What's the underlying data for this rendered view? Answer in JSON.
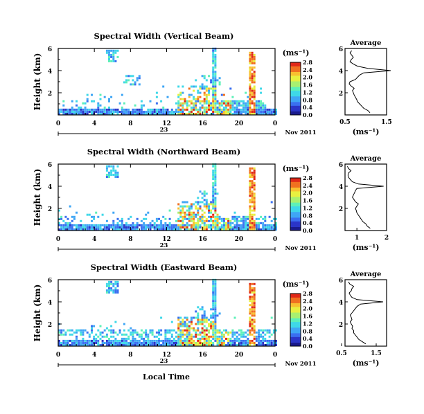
{
  "panels": [
    {
      "title": "Spectral Width (Vertical Beam)",
      "ylabel": "Height (km)",
      "ymax": 6,
      "yticks": [
        "2",
        "4",
        "6"
      ],
      "xticks": [
        "0",
        "4",
        "8",
        "12",
        "16",
        "20",
        "0"
      ],
      "day_label": "23",
      "date_label": "Nov 2011",
      "cbar_unit": "(ms⁻¹)",
      "cbar_ticks": [
        "0.0",
        "0.4",
        "0.8",
        "1.2",
        "1.6",
        "2.0",
        "2.4",
        "2.8"
      ],
      "avg_title": "Average",
      "avg_xticks": [
        "0.5",
        "1.5"
      ],
      "avg_yticks": [
        "2",
        "4",
        "6"
      ],
      "avg_xlabel": "(ms⁻¹)"
    },
    {
      "title": "Spectral Width (Northward Beam)",
      "ylabel": "Height (km)",
      "ymax": 6,
      "yticks": [
        "2",
        "4",
        "6"
      ],
      "xticks": [
        "0",
        "4",
        "8",
        "12",
        "16",
        "20",
        "0"
      ],
      "day_label": "23",
      "date_label": "Nov 2011",
      "cbar_unit": "(ms⁻¹)",
      "cbar_ticks": [
        "0.0",
        "0.4",
        "0.8",
        "1.2",
        "1.6",
        "2.0",
        "2.4",
        "2.8"
      ],
      "avg_title": "Average",
      "avg_xticks": [
        "1",
        "2"
      ],
      "avg_yticks": [
        "2",
        "4",
        "6"
      ],
      "avg_xlabel": "(ms⁻¹)"
    },
    {
      "title": "Spectral Width (Eastward Beam)",
      "ylabel": "Height (km)",
      "ymax": 6,
      "yticks": [
        "2",
        "4",
        "6"
      ],
      "xticks": [
        "0",
        "4",
        "8",
        "12",
        "16",
        "20",
        "0"
      ],
      "day_label": "23",
      "date_label": "Nov 2011",
      "cbar_unit": "(ms⁻¹)",
      "cbar_ticks": [
        "0.0",
        "0.4",
        "0.8",
        "1.2",
        "1.6",
        "2.0",
        "2.4",
        "2.8"
      ],
      "avg_title": "Average",
      "avg_xticks": [
        "0.5",
        "1.5"
      ],
      "avg_yticks": [
        "2",
        "4",
        "6"
      ],
      "avg_xlabel": "(ms⁻¹)"
    }
  ],
  "xlabel_bottom": "Local Time",
  "colors": {
    "colormap": [
      "#000000",
      "#1a1a8c",
      "#2b35c8",
      "#3a6ff0",
      "#3fa6f5",
      "#3fd8e8",
      "#5ef0b8",
      "#a8f070",
      "#e8f040",
      "#f8c030",
      "#f07020",
      "#e02818"
    ]
  },
  "chart_data": [
    {
      "type": "heatmap",
      "title": "Spectral Width (Vertical Beam)",
      "x_unit": "Local Time (h)",
      "xlim": [
        0,
        24
      ],
      "ylabel": "Height (km)",
      "ylim": [
        0,
        6
      ],
      "colorbar_range": [
        0.0,
        2.8
      ],
      "profile_title": "Average",
      "profile_xlabel": "(ms⁻¹)",
      "profile_xlim": [
        0.5,
        1.5
      ],
      "profile": {
        "height": [
          0.2,
          0.4,
          0.6,
          0.8,
          1.0,
          1.2,
          1.4,
          1.6,
          1.8,
          2.0,
          2.2,
          2.4,
          2.6,
          2.8,
          3.0,
          3.2,
          3.4,
          3.6,
          3.8,
          4.0,
          4.2,
          4.4,
          4.6,
          4.8,
          5.0,
          5.2,
          5.4,
          5.6,
          5.8
        ],
        "width": [
          1.1,
          1.05,
          0.95,
          0.9,
          0.85,
          0.8,
          0.78,
          0.75,
          0.72,
          0.7,
          0.68,
          0.72,
          0.65,
          0.6,
          0.62,
          0.75,
          0.8,
          0.85,
          0.95,
          1.6,
          1.05,
          0.8,
          0.7,
          0.62,
          0.65,
          0.7,
          0.66,
          0.62,
          0.66
        ]
      }
    },
    {
      "type": "heatmap",
      "title": "Spectral Width (Northward Beam)",
      "x_unit": "Local Time (h)",
      "xlim": [
        0,
        24
      ],
      "ylabel": "Height (km)",
      "ylim": [
        0,
        6
      ],
      "colorbar_range": [
        0.0,
        2.8
      ],
      "profile_title": "Average",
      "profile_xlabel": "(ms⁻¹)",
      "profile_xlim": [
        0.6,
        2.0
      ],
      "profile": {
        "height": [
          0.2,
          0.4,
          0.6,
          0.8,
          1.0,
          1.2,
          1.4,
          1.6,
          1.8,
          2.0,
          2.2,
          2.4,
          2.6,
          2.8,
          3.0,
          3.2,
          3.4,
          3.6,
          3.8,
          4.0,
          4.2,
          4.4,
          4.6,
          4.8,
          5.0,
          5.2,
          5.4,
          5.6,
          5.8
        ],
        "width": [
          1.45,
          1.35,
          1.3,
          1.2,
          1.15,
          1.1,
          1.05,
          1.0,
          0.98,
          0.95,
          1.0,
          1.05,
          0.95,
          0.9,
          0.85,
          0.88,
          0.92,
          0.95,
          1.0,
          1.9,
          1.05,
          0.85,
          0.78,
          0.72,
          0.7,
          0.72,
          0.8,
          0.72,
          0.68
        ]
      }
    },
    {
      "type": "heatmap",
      "title": "Spectral Width (Eastward Beam)",
      "x_unit": "Local Time (h)",
      "xlim": [
        0,
        24
      ],
      "ylabel": "Height (km)",
      "ylim": [
        0,
        6
      ],
      "colorbar_range": [
        0.0,
        2.8
      ],
      "profile_title": "Average",
      "profile_xlabel": "(ms⁻¹)",
      "profile_xlim": [
        0.6,
        1.8
      ],
      "profile": {
        "height": [
          0.2,
          0.4,
          0.6,
          0.8,
          1.0,
          1.2,
          1.4,
          1.6,
          1.8,
          2.0,
          2.2,
          2.4,
          2.6,
          2.8,
          3.0,
          3.2,
          3.4,
          3.6,
          3.8,
          4.0,
          4.2,
          4.4,
          4.6,
          4.8,
          5.0,
          5.2,
          5.4,
          5.6,
          5.8
        ],
        "width": [
          1.2,
          1.1,
          1.0,
          0.95,
          0.9,
          0.85,
          0.85,
          0.8,
          0.82,
          0.78,
          0.75,
          0.8,
          0.78,
          0.75,
          0.8,
          0.85,
          0.9,
          0.95,
          1.05,
          1.7,
          0.95,
          0.8,
          0.75,
          0.72,
          0.78,
          0.8,
          0.85,
          0.74,
          0.7
        ]
      }
    }
  ]
}
